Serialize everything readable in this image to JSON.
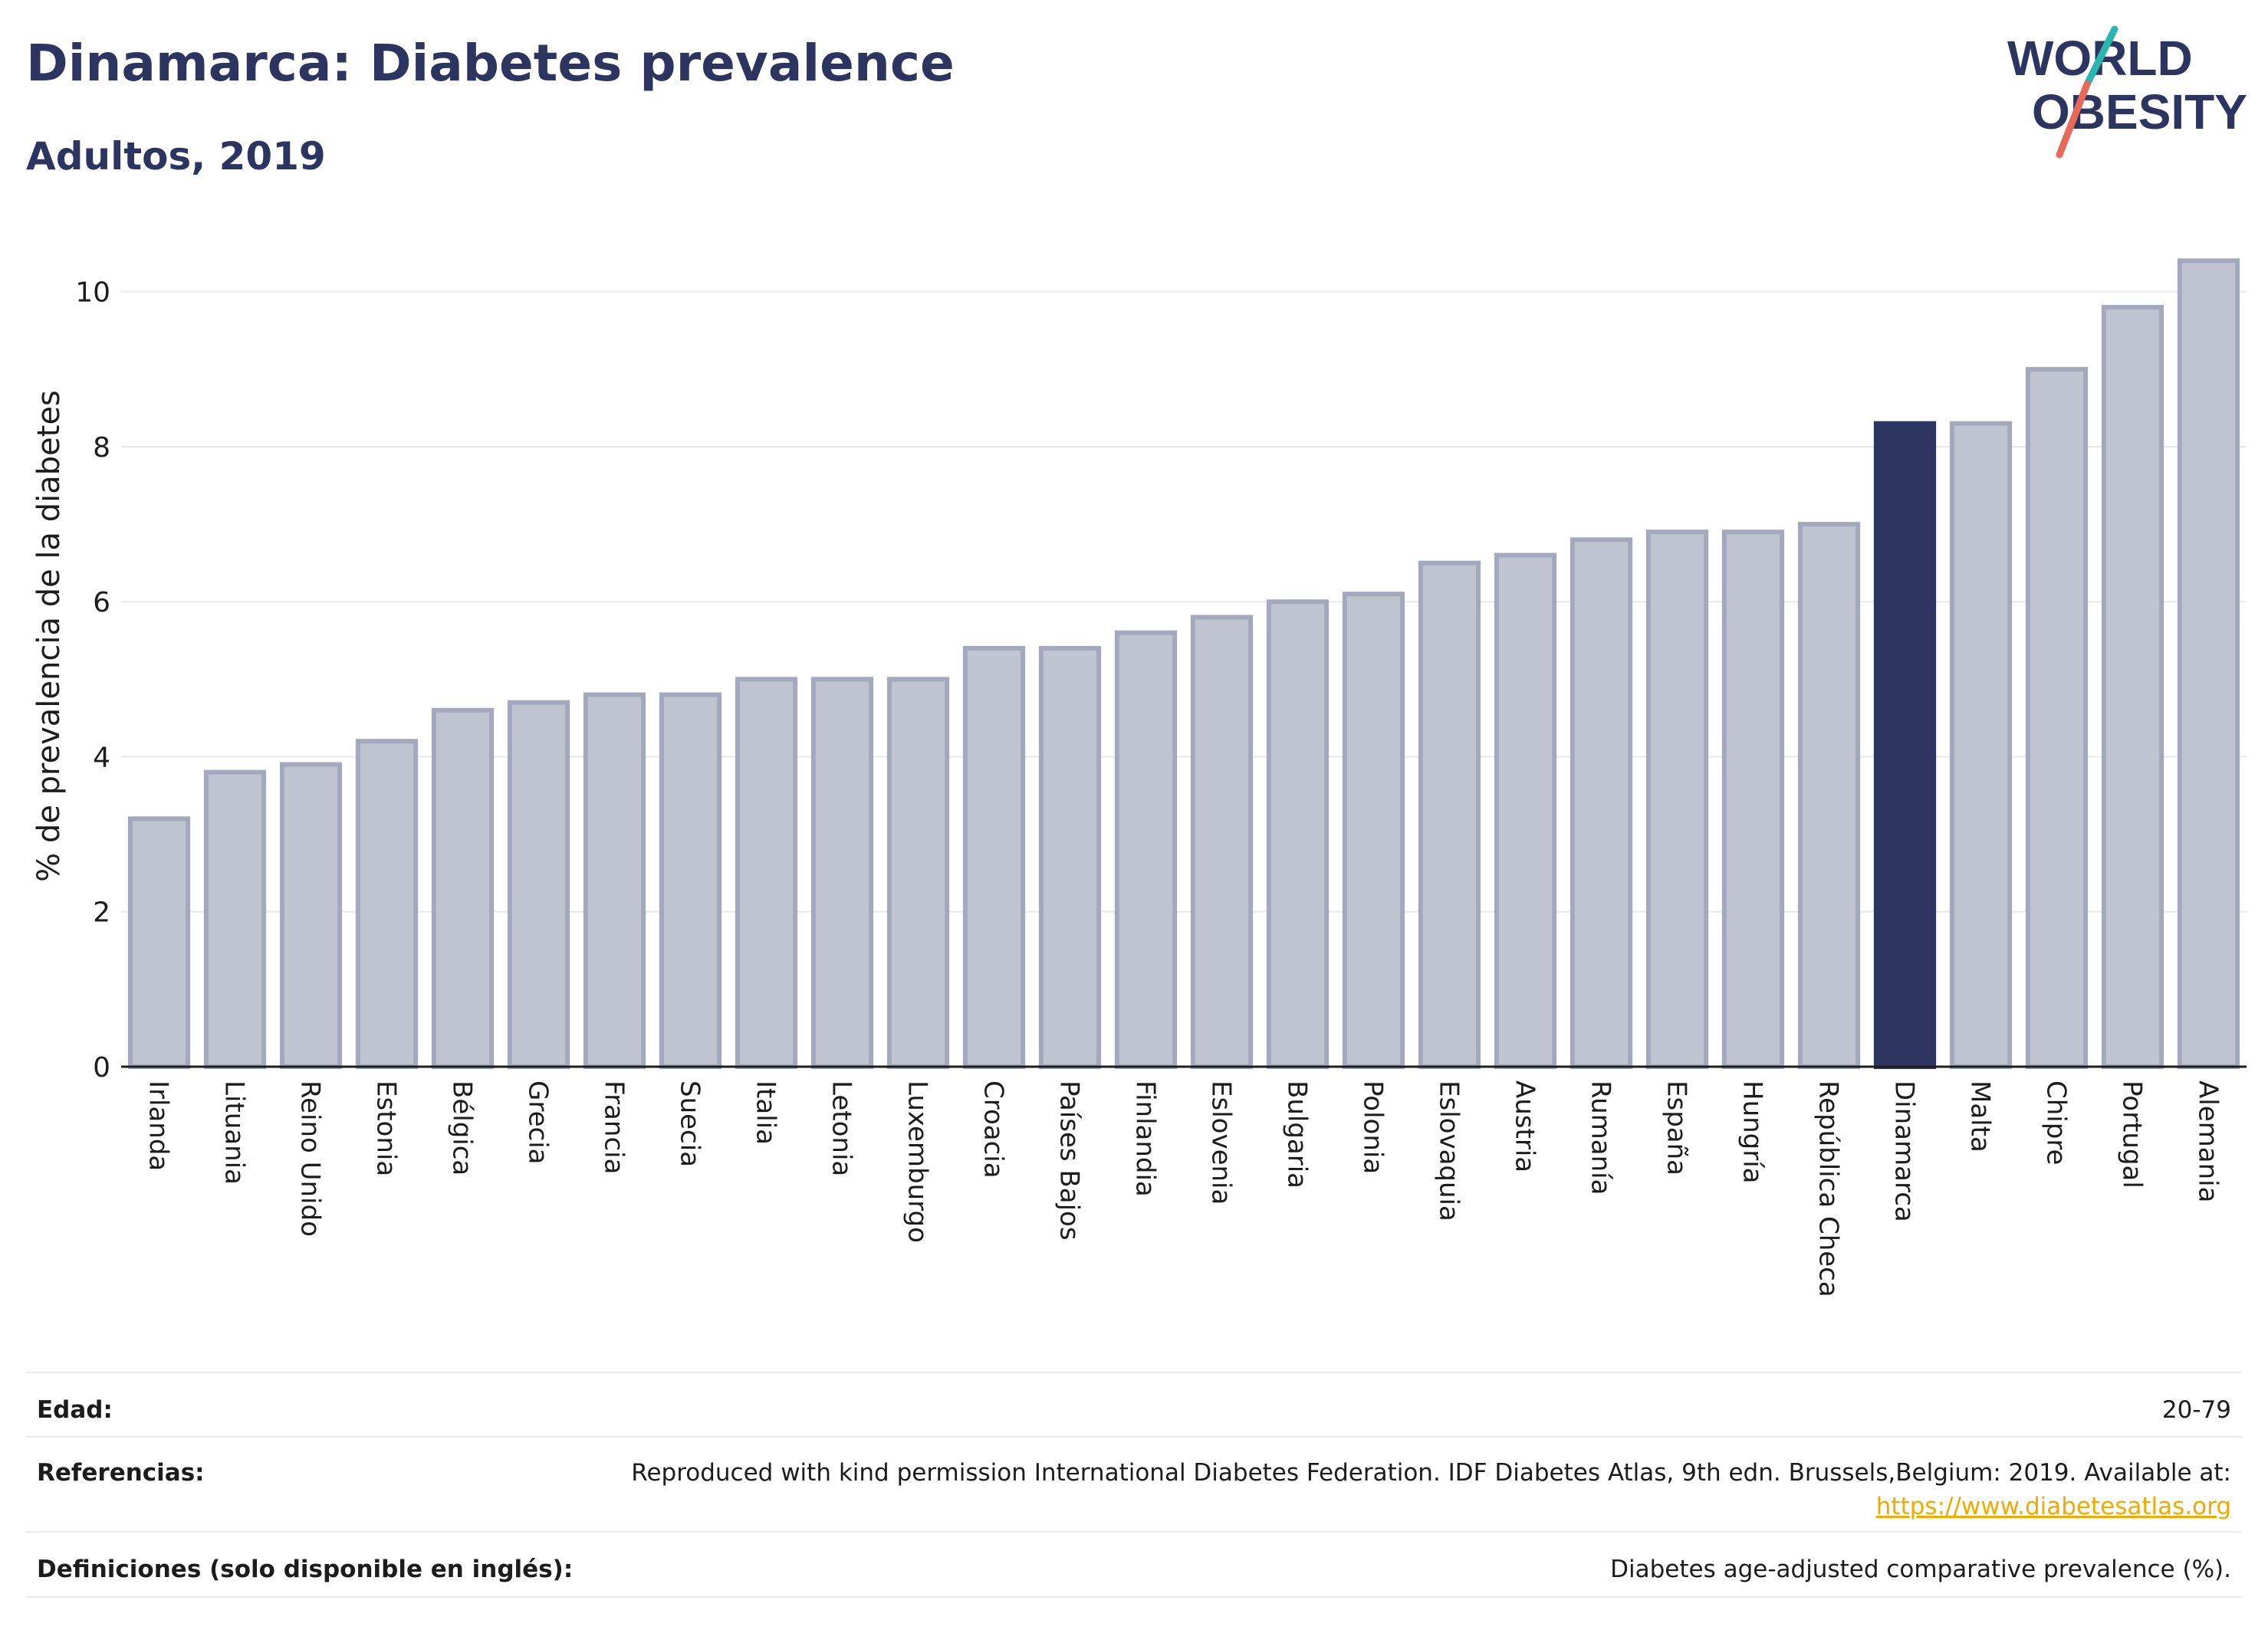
{
  "title": "Dinamarca: Diabetes prevalence",
  "subtitle": "Adultos, 2019",
  "logo": {
    "line1": "WORLD",
    "line2": "OBESITY",
    "colors": {
      "text": "#2b3560",
      "slash_top": "#2bb5b0",
      "slash_bottom": "#e8685a"
    }
  },
  "colors": {
    "bar": "#c0c3d0",
    "bar_border": "#a3a8bc",
    "highlight": "#2b3560",
    "grid": "#e6e8ee",
    "axis": "#1c1c1c"
  },
  "chart_data": {
    "type": "bar",
    "title": "Dinamarca: Diabetes prevalence",
    "subtitle": "Adultos, 2019",
    "xlabel": "",
    "ylabel": "% de prevalencia de la diabetes",
    "ylim": [
      0,
      10.6
    ],
    "yticks": [
      0,
      2,
      4,
      6,
      8,
      10
    ],
    "grid": true,
    "highlight": "Dinamarca",
    "categories": [
      "Irlanda",
      "Lituania",
      "Reino Unido",
      "Estonia",
      "Bélgica",
      "Grecia",
      "Francia",
      "Suecia",
      "Italia",
      "Letonia",
      "Luxemburgo",
      "Croacia",
      "Países Bajos",
      "Finlandia",
      "Eslovenia",
      "Bulgaria",
      "Polonia",
      "Eslovaquia",
      "Austria",
      "Rumanía",
      "España",
      "Hungría",
      "República Checa",
      "Dinamarca",
      "Malta",
      "Chipre",
      "Portugal",
      "Alemania"
    ],
    "values": [
      3.2,
      3.8,
      3.9,
      4.2,
      4.6,
      4.7,
      4.8,
      4.8,
      5.0,
      5.0,
      5.0,
      5.4,
      5.4,
      5.6,
      5.8,
      6.0,
      6.1,
      6.5,
      6.6,
      6.8,
      6.9,
      6.9,
      7.0,
      8.3,
      8.3,
      9.0,
      9.8,
      10.4
    ]
  },
  "info": {
    "edad_label": "Edad:",
    "edad_value": "20-79",
    "ref_label": "Referencias:",
    "ref_text": "Reproduced with kind permission International Diabetes Federation. IDF Diabetes Atlas, 9th edn. Brussels,Belgium: 2019. Available at:",
    "ref_link": "https://www.diabetesatlas.org",
    "def_label": "Definiciones (solo disponible en inglés):",
    "def_value": "Diabetes age-adjusted comparative prevalence (%)."
  }
}
